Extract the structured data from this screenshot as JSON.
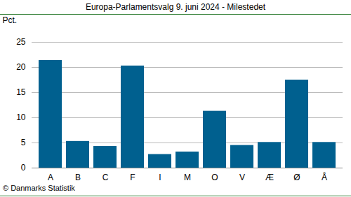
{
  "chart_data": {
    "type": "bar",
    "title": "Europa-Parlamentsvalg 9. juni 2024 - Milestedet",
    "y_label": "Pct.",
    "caption": "© Danmarks Statistik",
    "categories": [
      "A",
      "B",
      "C",
      "F",
      "I",
      "M",
      "O",
      "V",
      "Æ",
      "Ø",
      "Å"
    ],
    "values": [
      21.4,
      5.3,
      4.3,
      20.3,
      2.7,
      3.2,
      11.3,
      4.5,
      5.1,
      17.5,
      5.1
    ],
    "color": "#00608f",
    "ylim": [
      0,
      25
    ],
    "yticks": [
      0,
      5,
      10,
      15,
      20,
      25
    ],
    "grid": true
  }
}
